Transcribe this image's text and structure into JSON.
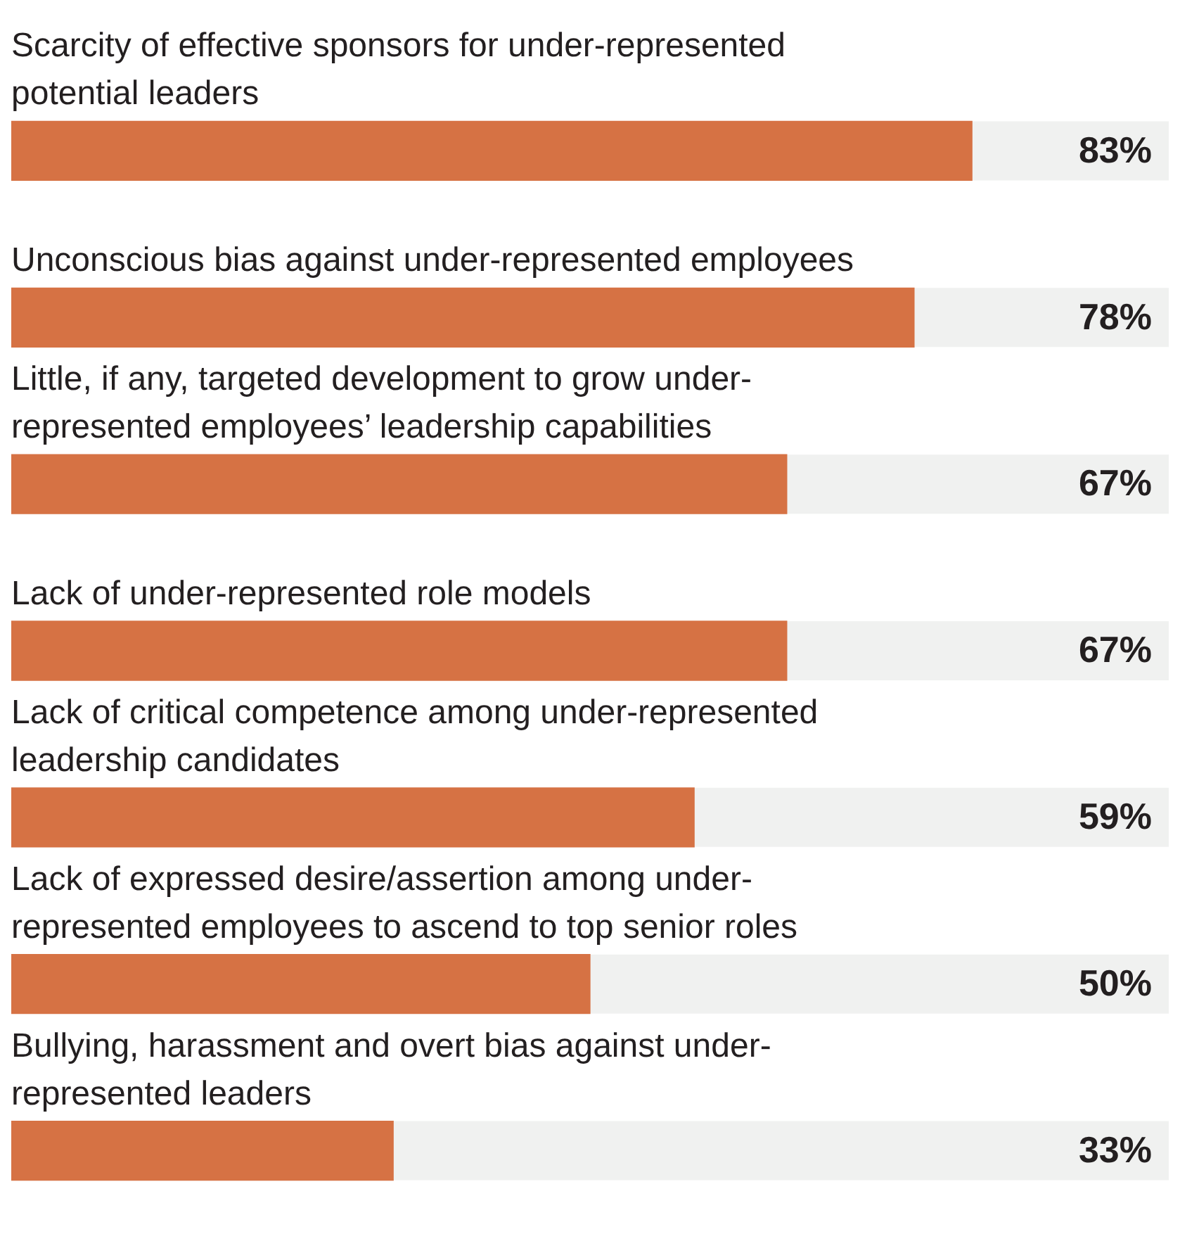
{
  "chart_data": {
    "type": "bar",
    "orientation": "horizontal",
    "categories": [
      "Scarcity of effective sponsors for under-represented potential leaders",
      "Unconscious bias against under-represented employees",
      "Little, if any, targeted development to grow under-represented employees’ leadership capabilities",
      "Lack of under-represented role models",
      "Lack of critical competence among under-represented leadership candidates",
      "Lack of expressed desire/assertion among under-represented employees to ascend to top senior roles",
      "Bullying, harassment and overt bias against under-represented leaders"
    ],
    "values": [
      83,
      78,
      67,
      67,
      59,
      50,
      33
    ],
    "value_labels": [
      "83%",
      "78%",
      "67%",
      "67%",
      "59%",
      "50%",
      "33%"
    ],
    "color": "#d67244",
    "xlim": [
      0,
      100
    ],
    "grid": false,
    "legend": false
  }
}
